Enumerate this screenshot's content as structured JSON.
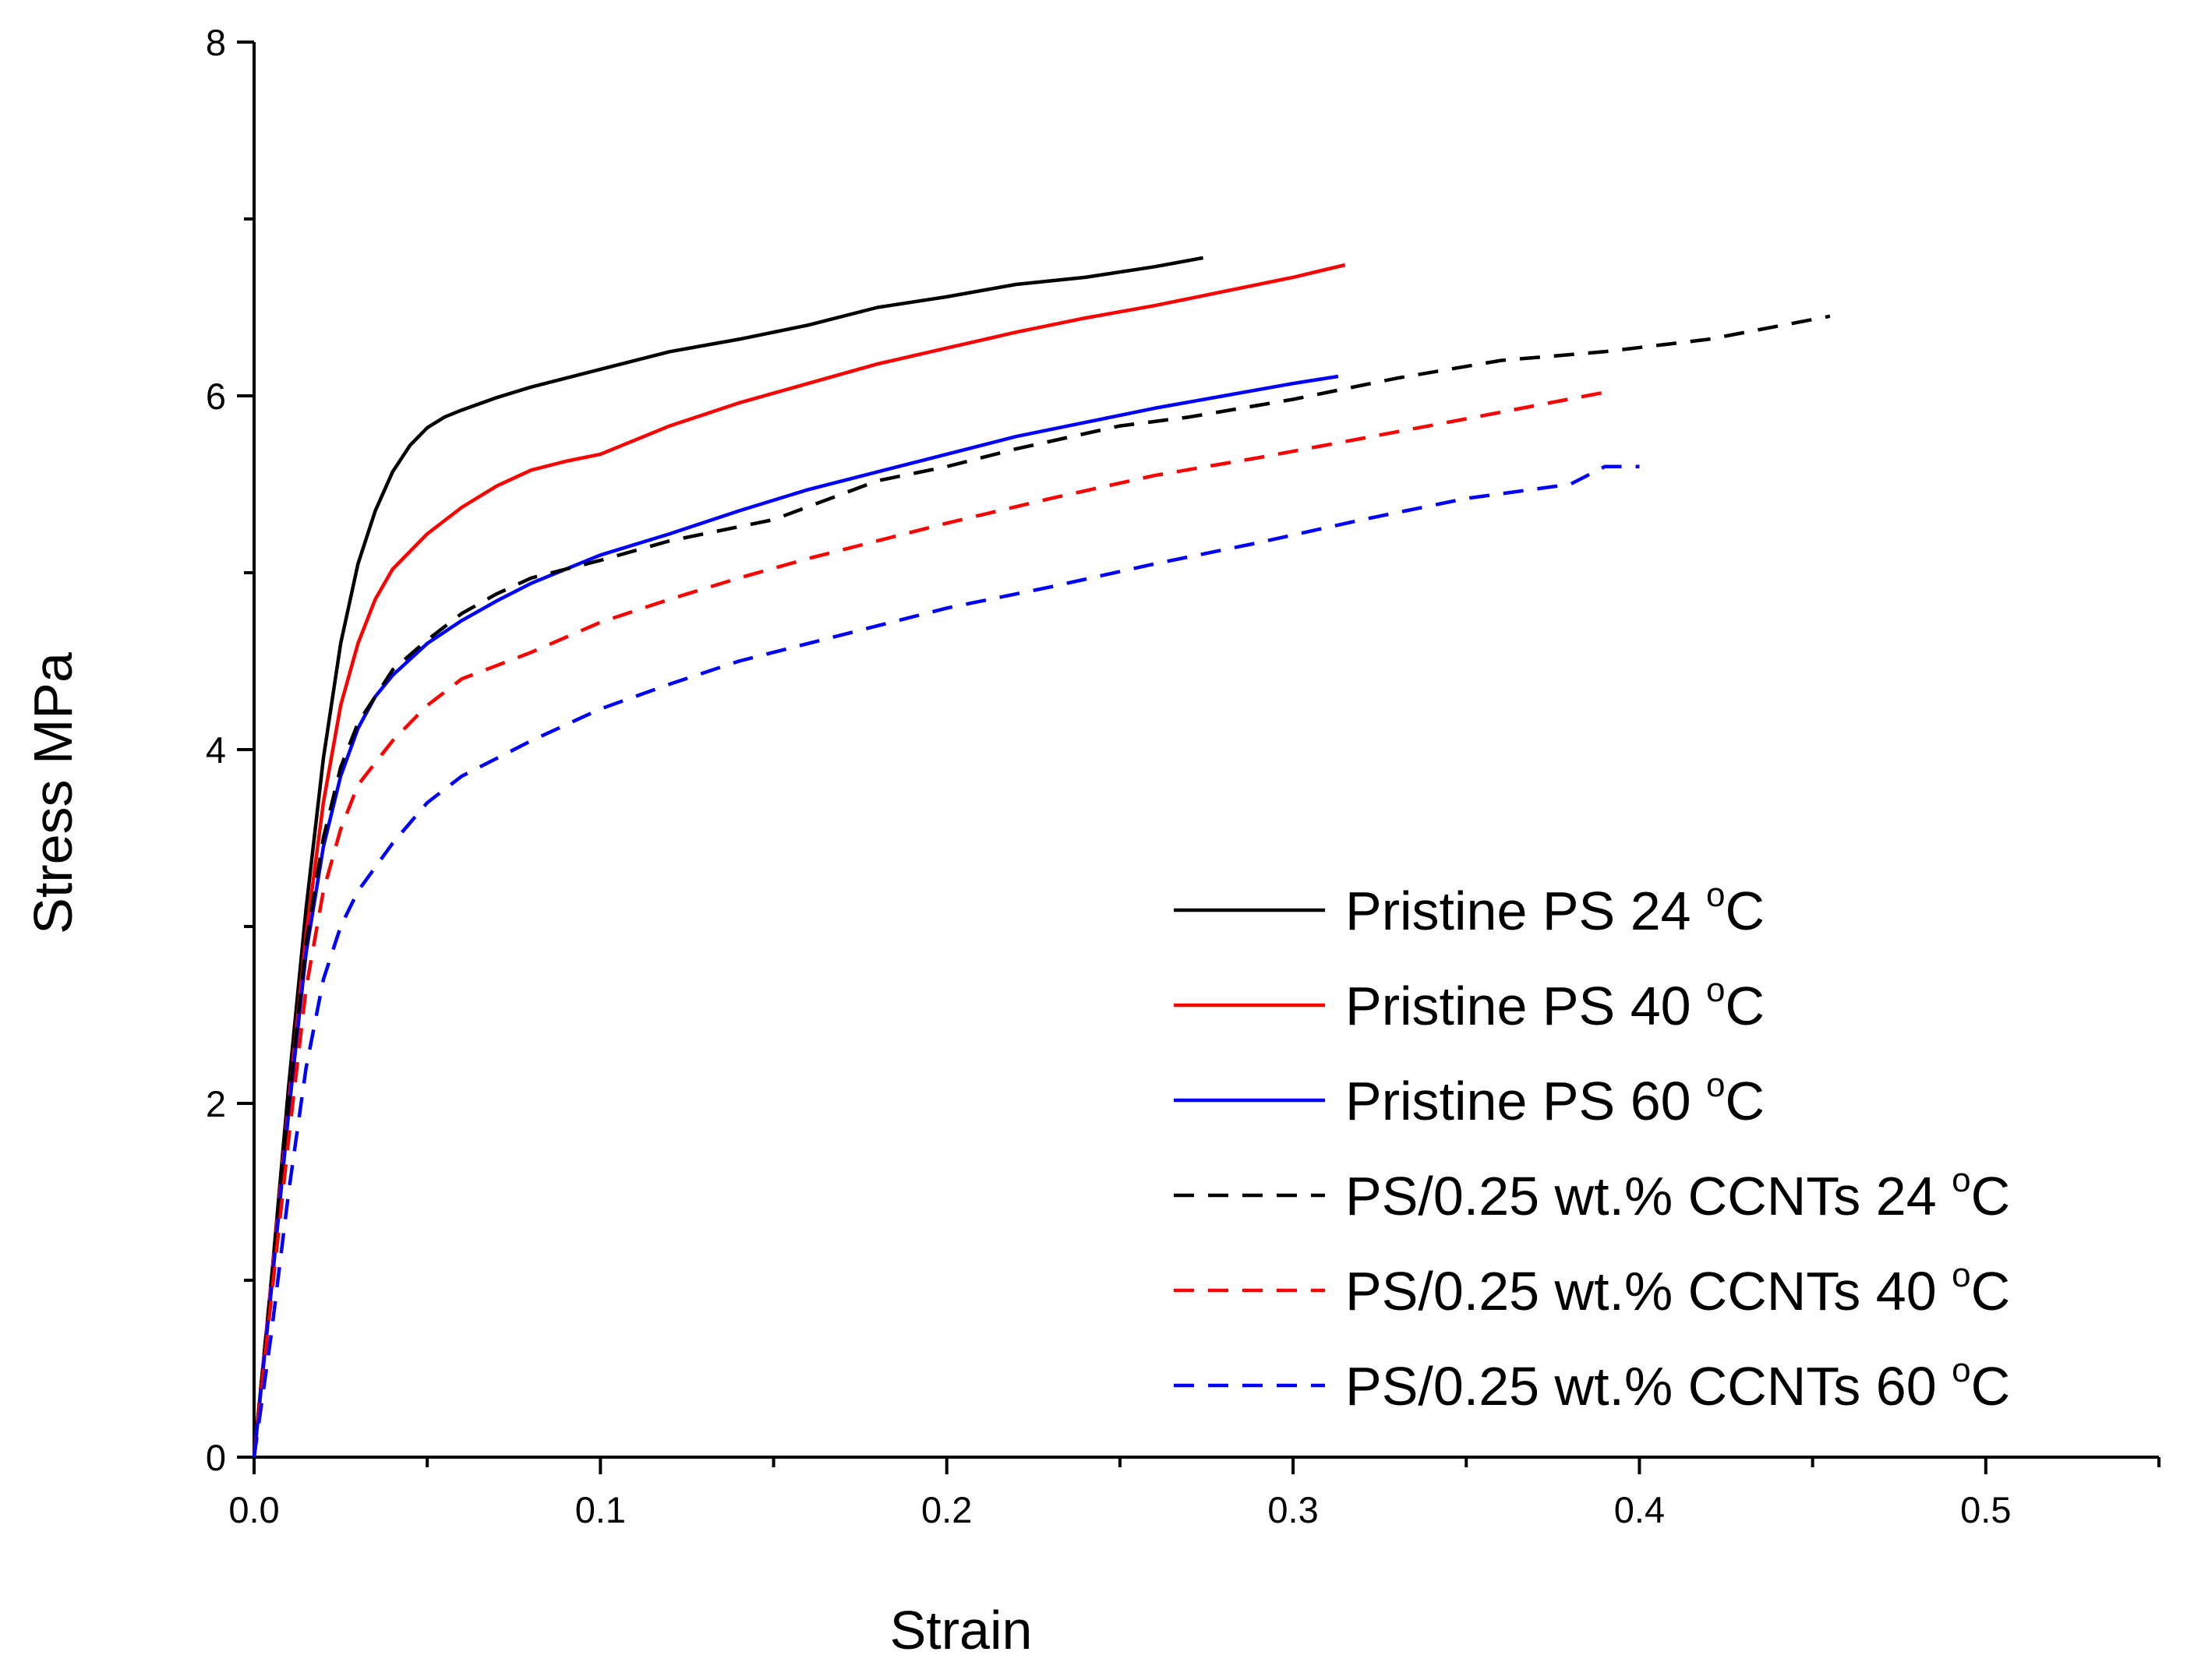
{
  "chart_data": {
    "type": "line",
    "title": "",
    "xlabel": "Strain",
    "ylabel": "Stress MPa",
    "xlim": [
      0,
      0.55
    ],
    "ylim": [
      0,
      8
    ],
    "x_ticks": [
      "0.0",
      "0.1",
      "0.2",
      "0.3",
      "0.4",
      "0.5"
    ],
    "y_ticks": [
      "0",
      "2",
      "4",
      "6",
      "8"
    ],
    "grid": false,
    "legend_position": "bottom-right",
    "series": [
      {
        "name": "Pristine PS 24",
        "superscript": "o",
        "unit": "C",
        "color": "#000000",
        "style": "solid",
        "x": [
          0,
          0.005,
          0.01,
          0.015,
          0.02,
          0.025,
          0.03,
          0.035,
          0.04,
          0.045,
          0.05,
          0.055,
          0.06,
          0.07,
          0.08,
          0.09,
          0.1,
          0.12,
          0.14,
          0.16,
          0.18,
          0.2,
          0.22,
          0.24,
          0.26,
          0.274
        ],
        "y": [
          0,
          1.0,
          2.1,
          3.1,
          3.95,
          4.6,
          5.05,
          5.35,
          5.57,
          5.72,
          5.82,
          5.88,
          5.92,
          5.99,
          6.05,
          6.1,
          6.15,
          6.25,
          6.32,
          6.4,
          6.5,
          6.56,
          6.63,
          6.67,
          6.73,
          6.78
        ]
      },
      {
        "name": "Pristine PS 40",
        "superscript": "o",
        "unit": "C",
        "color": "#ff0000",
        "style": "solid",
        "x": [
          0,
          0.005,
          0.01,
          0.015,
          0.02,
          0.025,
          0.03,
          0.035,
          0.04,
          0.05,
          0.06,
          0.07,
          0.08,
          0.09,
          0.1,
          0.12,
          0.14,
          0.16,
          0.18,
          0.2,
          0.22,
          0.24,
          0.26,
          0.28,
          0.3,
          0.315
        ],
        "y": [
          0,
          1.0,
          2.0,
          2.95,
          3.7,
          4.25,
          4.6,
          4.85,
          5.02,
          5.22,
          5.37,
          5.49,
          5.58,
          5.63,
          5.67,
          5.83,
          5.96,
          6.07,
          6.18,
          6.27,
          6.36,
          6.44,
          6.51,
          6.59,
          6.67,
          6.74
        ]
      },
      {
        "name": "Pristine PS 60",
        "superscript": "o",
        "unit": "C",
        "color": "#0000ff",
        "style": "solid",
        "x": [
          0,
          0.005,
          0.01,
          0.015,
          0.02,
          0.025,
          0.03,
          0.035,
          0.04,
          0.05,
          0.06,
          0.07,
          0.08,
          0.1,
          0.12,
          0.14,
          0.16,
          0.18,
          0.2,
          0.22,
          0.24,
          0.26,
          0.28,
          0.3,
          0.313
        ],
        "y": [
          0,
          0.95,
          1.95,
          2.85,
          3.45,
          3.85,
          4.12,
          4.3,
          4.42,
          4.6,
          4.73,
          4.84,
          4.94,
          5.1,
          5.22,
          5.35,
          5.47,
          5.57,
          5.67,
          5.77,
          5.85,
          5.93,
          6.0,
          6.07,
          6.11
        ]
      },
      {
        "name": "PS/0.25 wt.% CCNTs 24",
        "superscript": "o",
        "unit": "C",
        "color": "#000000",
        "style": "dashed",
        "x": [
          0,
          0.005,
          0.01,
          0.015,
          0.02,
          0.025,
          0.03,
          0.035,
          0.04,
          0.05,
          0.06,
          0.07,
          0.08,
          0.1,
          0.12,
          0.15,
          0.18,
          0.2,
          0.22,
          0.25,
          0.27,
          0.3,
          0.33,
          0.36,
          0.39,
          0.42,
          0.455
        ],
        "y": [
          0,
          1.0,
          2.0,
          2.9,
          3.5,
          3.9,
          4.15,
          4.3,
          4.45,
          4.62,
          4.77,
          4.88,
          4.97,
          5.07,
          5.18,
          5.3,
          5.52,
          5.6,
          5.7,
          5.83,
          5.88,
          5.98,
          6.1,
          6.2,
          6.25,
          6.32,
          6.45
        ]
      },
      {
        "name": "PS/0.25 wt.% CCNTs 40",
        "superscript": "o",
        "unit": "C",
        "color": "#ff0000",
        "style": "dashed",
        "x": [
          0,
          0.005,
          0.01,
          0.015,
          0.02,
          0.025,
          0.03,
          0.04,
          0.05,
          0.06,
          0.08,
          0.1,
          0.12,
          0.14,
          0.16,
          0.18,
          0.2,
          0.23,
          0.26,
          0.29,
          0.32,
          0.35,
          0.39
        ],
        "y": [
          0,
          0.9,
          1.8,
          2.65,
          3.2,
          3.55,
          3.8,
          4.05,
          4.25,
          4.4,
          4.55,
          4.72,
          4.85,
          4.97,
          5.08,
          5.18,
          5.28,
          5.42,
          5.55,
          5.65,
          5.76,
          5.87,
          6.02
        ]
      },
      {
        "name": "PS/0.25 wt.% CCNTs 60",
        "superscript": "o",
        "unit": "C",
        "color": "#0000ff",
        "style": "dashed",
        "x": [
          0,
          0.005,
          0.01,
          0.015,
          0.02,
          0.025,
          0.03,
          0.04,
          0.05,
          0.06,
          0.08,
          0.1,
          0.12,
          0.14,
          0.16,
          0.18,
          0.2,
          0.23,
          0.26,
          0.29,
          0.32,
          0.35,
          0.38,
          0.39,
          0.4
        ],
        "y": [
          0,
          0.7,
          1.5,
          2.2,
          2.7,
          3.0,
          3.2,
          3.47,
          3.7,
          3.85,
          4.05,
          4.23,
          4.37,
          4.5,
          4.6,
          4.7,
          4.8,
          4.92,
          5.05,
          5.17,
          5.3,
          5.42,
          5.5,
          5.6,
          5.6
        ]
      }
    ]
  }
}
